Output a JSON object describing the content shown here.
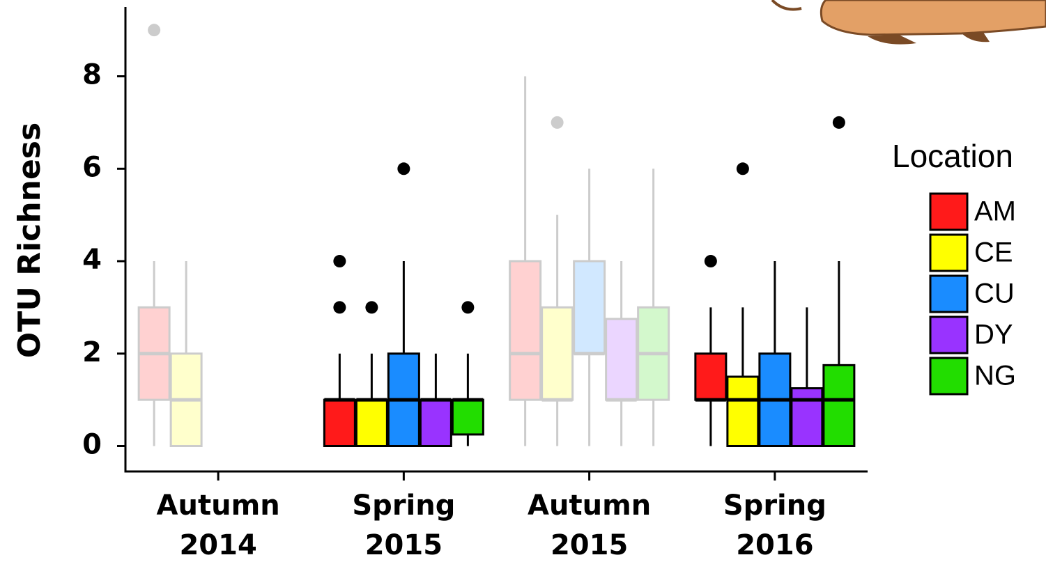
{
  "chart_data": {
    "type": "box",
    "y_label": "OTU Richness",
    "legend_title": "Location",
    "categories": [
      [
        "Autumn",
        "2014"
      ],
      [
        "Spring",
        "2015"
      ],
      [
        "Autumn",
        "2015"
      ],
      [
        "Spring",
        "2016"
      ]
    ],
    "category_opacity": [
      0.2,
      1,
      0.2,
      1
    ],
    "ylim": [
      -0.55,
      9.5
    ],
    "yticks": [
      0,
      2,
      4,
      6,
      8
    ],
    "series": [
      {
        "name": "AM",
        "color": "#ff1a1a",
        "values": [
          {
            "min": 0,
            "q1": 1,
            "median": 2,
            "q3": 3,
            "max": 4,
            "outliers": [
              9
            ]
          },
          {
            "min": 0,
            "q1": 0,
            "median": 1,
            "q3": 1,
            "max": 2,
            "outliers": [
              3,
              4
            ]
          },
          {
            "min": 0,
            "q1": 1,
            "median": 2,
            "q3": 4,
            "max": 8,
            "outliers": []
          },
          {
            "min": 0,
            "q1": 1,
            "median": 1,
            "q3": 2,
            "max": 3,
            "outliers": [
              4
            ]
          }
        ]
      },
      {
        "name": "CE",
        "color": "#ffff00",
        "values": [
          {
            "min": 0,
            "q1": 0,
            "median": 1,
            "q3": 2,
            "max": 4,
            "outliers": []
          },
          {
            "min": 0,
            "q1": 0,
            "median": 1,
            "q3": 1,
            "max": 2,
            "outliers": [
              3
            ]
          },
          {
            "min": 0,
            "q1": 1,
            "median": 1,
            "q3": 3,
            "max": 5,
            "outliers": [
              7
            ]
          },
          {
            "min": 0,
            "q1": 0,
            "median": 1,
            "q3": 1.5,
            "max": 3,
            "outliers": [
              6
            ]
          }
        ]
      },
      {
        "name": "CU",
        "color": "#1a8cff",
        "values": [
          null,
          {
            "min": 0,
            "q1": 0,
            "median": 1,
            "q3": 2,
            "max": 4,
            "outliers": [
              6
            ]
          },
          {
            "min": 0,
            "q1": 2,
            "median": 2,
            "q3": 4,
            "max": 6,
            "outliers": []
          },
          {
            "min": 0,
            "q1": 0,
            "median": 1,
            "q3": 2,
            "max": 4,
            "outliers": []
          }
        ]
      },
      {
        "name": "DY",
        "color": "#9933ff",
        "values": [
          null,
          {
            "min": 0,
            "q1": 0,
            "median": 1,
            "q3": 1,
            "max": 2,
            "outliers": []
          },
          {
            "min": 0,
            "q1": 1,
            "median": 1,
            "q3": 2.75,
            "max": 4,
            "outliers": []
          },
          {
            "min": 0,
            "q1": 0,
            "median": 1,
            "q3": 1.25,
            "max": 3,
            "outliers": []
          }
        ]
      },
      {
        "name": "NG",
        "color": "#22dd00",
        "values": [
          null,
          {
            "min": 0,
            "q1": 0.25,
            "median": 1,
            "q3": 1,
            "max": 2,
            "outliers": [
              3
            ]
          },
          {
            "min": 0,
            "q1": 1,
            "median": 2,
            "q3": 3,
            "max": 6,
            "outliers": []
          },
          {
            "min": 0,
            "q1": 0,
            "median": 1,
            "q3": 1.75,
            "max": 4,
            "outliers": [
              7
            ]
          }
        ]
      }
    ]
  }
}
